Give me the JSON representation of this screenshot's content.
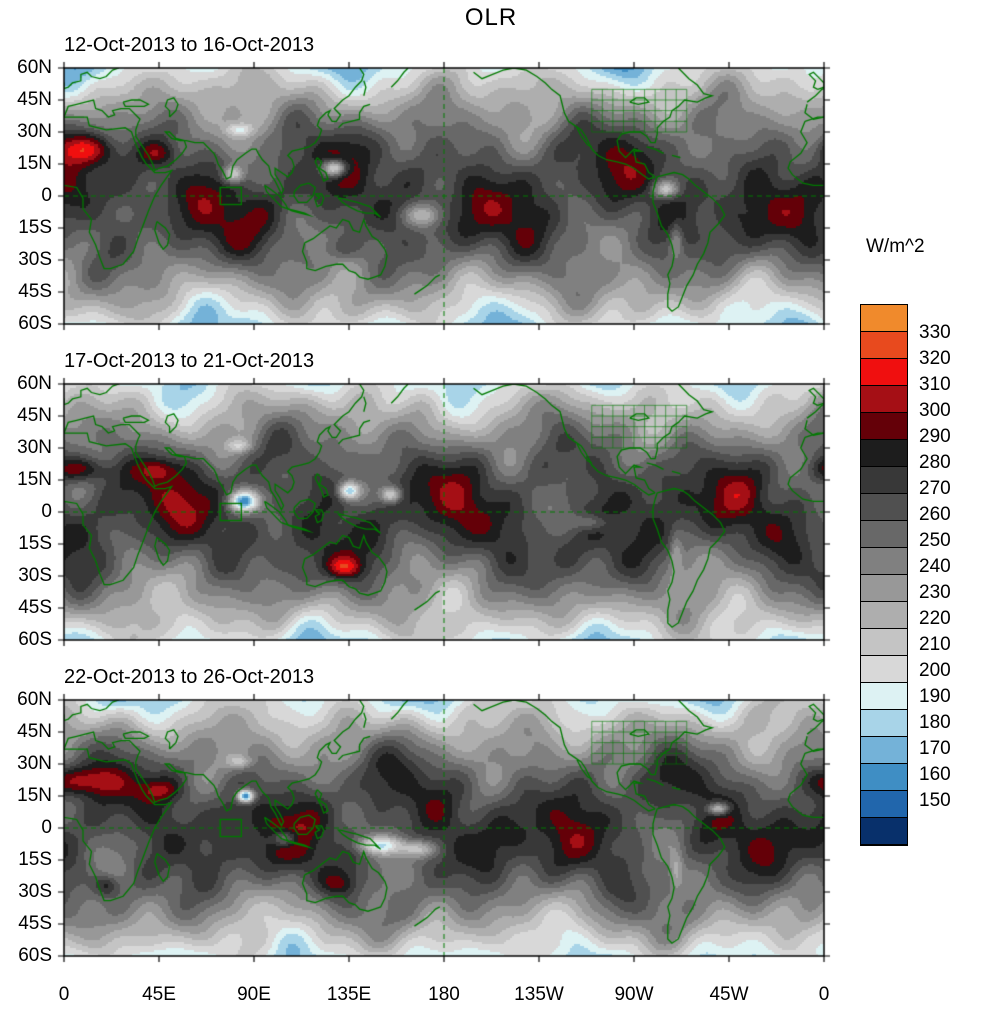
{
  "title": "OLR",
  "chart_data": {
    "type": "heatmap",
    "title": "OLR",
    "overlay_color": "#007a00",
    "panels": [
      {
        "title": "12-Oct-2013 to 16-Oct-2013",
        "seed": 1,
        "anomalies": [
          [
            10,
            22,
            40,
            15,
            7
          ],
          [
            45,
            20,
            24,
            8,
            5
          ],
          [
            128,
            13,
            -85,
            6,
            4
          ],
          [
            80,
            10,
            -60,
            5,
            4
          ],
          [
            285,
            3,
            -55,
            6,
            4
          ],
          [
            170,
            -9,
            -40,
            9,
            5
          ],
          [
            83,
            31,
            -35,
            6,
            3
          ],
          [
            290,
            -20,
            -28,
            3,
            9
          ],
          [
            132,
            -25,
            16,
            8,
            5
          ]
        ]
      },
      {
        "title": "17-Oct-2013 to 21-Oct-2013",
        "seed": 2,
        "anomalies": [
          [
            8,
            20,
            44,
            14,
            6
          ],
          [
            45,
            20,
            26,
            8,
            5
          ],
          [
            85,
            5,
            -100,
            7,
            5
          ],
          [
            135,
            10,
            -80,
            5,
            4
          ],
          [
            155,
            8,
            -65,
            5,
            4
          ],
          [
            133,
            -26,
            40,
            8,
            5
          ],
          [
            83,
            31,
            -32,
            6,
            3
          ],
          [
            290,
            -20,
            -26,
            3,
            9
          ],
          [
            250,
            -5,
            -30,
            8,
            4
          ]
        ]
      },
      {
        "title": "22-Oct-2013 to 26-Oct-2013",
        "seed": 3,
        "anomalies": [
          [
            8,
            22,
            46,
            16,
            7
          ],
          [
            45,
            18,
            26,
            9,
            5
          ],
          [
            20,
            -27,
            34,
            6,
            5
          ],
          [
            86,
            15,
            -115,
            4,
            3
          ],
          [
            105,
            -5,
            -50,
            6,
            4
          ],
          [
            150,
            -8,
            -60,
            11,
            4
          ],
          [
            168,
            -10,
            -45,
            8,
            4
          ],
          [
            310,
            9,
            -70,
            5,
            3
          ],
          [
            83,
            31,
            -30,
            6,
            3
          ],
          [
            290,
            -20,
            -26,
            3,
            9
          ],
          [
            130,
            -26,
            20,
            8,
            5
          ]
        ]
      }
    ],
    "x_axis": {
      "tick_labels": [
        "0",
        "45E",
        "90E",
        "135E",
        "180",
        "135W",
        "90W",
        "45W",
        "0"
      ],
      "lon_range_deg": [
        0,
        360
      ]
    },
    "y_axis": {
      "tick_labels": [
        "60N",
        "45N",
        "30N",
        "15N",
        "0",
        "15S",
        "30S",
        "45S",
        "60S"
      ],
      "lat_range_deg": [
        60,
        -60
      ]
    },
    "roi_box": {
      "lon": [
        74,
        84
      ],
      "lat": [
        -4,
        4
      ]
    },
    "dashed_lines": {
      "equator_lat": 0,
      "meridian_lon": 180
    },
    "na_grid": {
      "lon": [
        250,
        295
      ],
      "lat": [
        30,
        50
      ],
      "step": 5
    },
    "colorbar": {
      "label": "W/m^2",
      "tick_labels": [
        "330",
        "320",
        "310",
        "300",
        "290",
        "280",
        "270",
        "260",
        "250",
        "240",
        "230",
        "220",
        "210",
        "200",
        "190",
        "180",
        "170",
        "160",
        "150"
      ],
      "levels": [
        150,
        160,
        170,
        180,
        190,
        200,
        210,
        220,
        230,
        240,
        250,
        260,
        270,
        280,
        290,
        300,
        310,
        320,
        330
      ],
      "colors_bottom_to_top": [
        "#08306b",
        "#2166ac",
        "#3f8ec4",
        "#74b2d8",
        "#a8d4e8",
        "#ddf2f3",
        "#d8d8d8",
        "#c4c4c4",
        "#aeaeae",
        "#989898",
        "#808080",
        "#686868",
        "#505050",
        "#383838",
        "#1d1d1d",
        "#640008",
        "#a50f15",
        "#f00f0f",
        "#e84a1e",
        "#f08a2c"
      ]
    }
  }
}
